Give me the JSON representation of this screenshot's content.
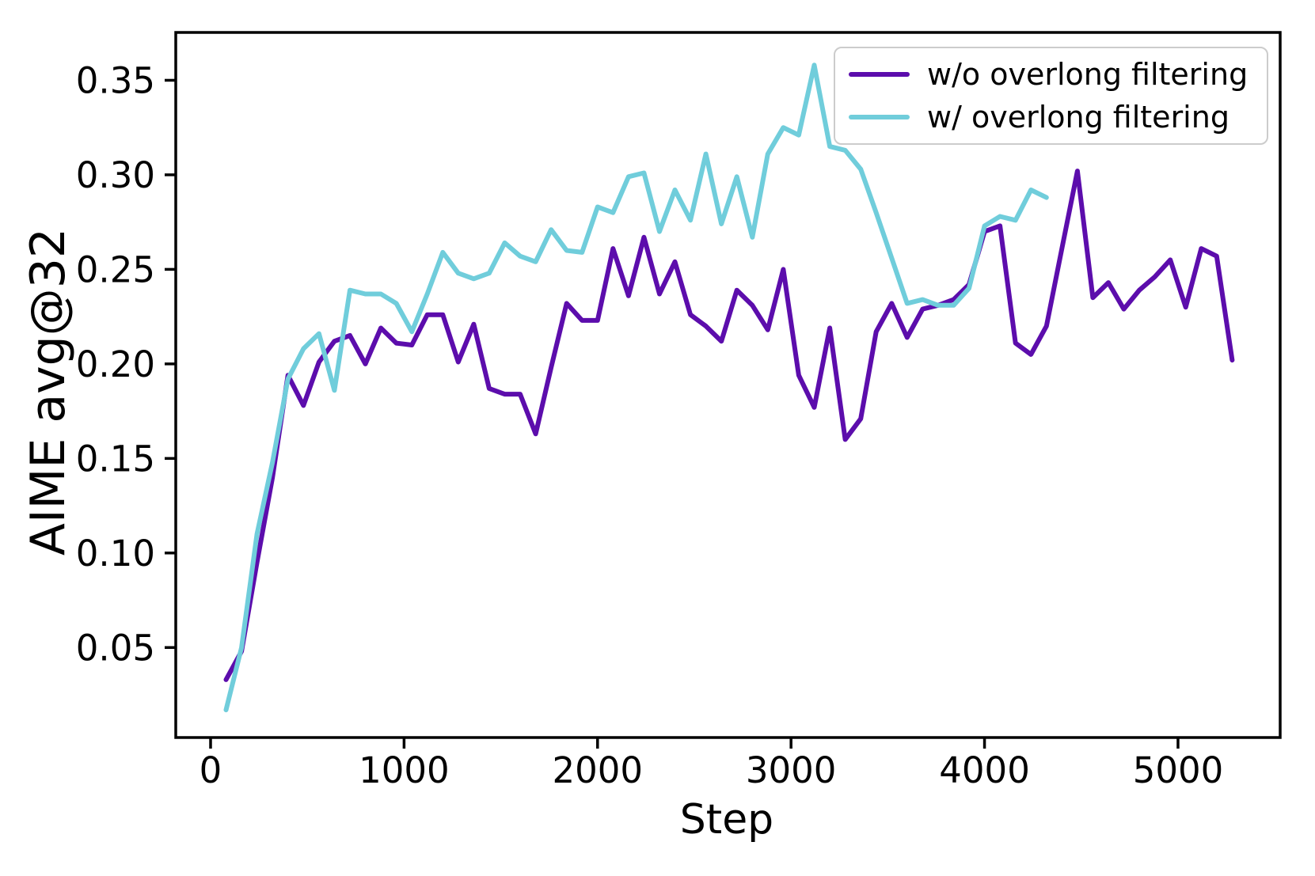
{
  "chart_data": {
    "type": "line",
    "title": "",
    "xlabel": "Step",
    "ylabel": "AIME avg@32",
    "xlim": [
      -180,
      5528
    ],
    "ylim": [
      0.0024,
      0.3753
    ],
    "xticks": [
      0,
      1000,
      2000,
      3000,
      4000,
      5000
    ],
    "yticks": [
      0.05,
      0.1,
      0.15,
      0.2,
      0.25,
      0.3,
      0.35
    ],
    "grid": false,
    "legend_position": "upper right",
    "axis_color": "#000000",
    "background_color": "#ffffff",
    "series": [
      {
        "name": "w/o overlong filtering",
        "color": "#5c0dac",
        "x": [
          80,
          160,
          240,
          320,
          400,
          480,
          560,
          640,
          720,
          800,
          880,
          960,
          1040,
          1120,
          1200,
          1280,
          1360,
          1440,
          1520,
          1600,
          1680,
          1760,
          1840,
          1920,
          2000,
          2080,
          2160,
          2240,
          2320,
          2400,
          2480,
          2560,
          2640,
          2720,
          2800,
          2880,
          2960,
          3040,
          3120,
          3200,
          3280,
          3360,
          3440,
          3520,
          3600,
          3680,
          3760,
          3840,
          3920,
          4000,
          4080,
          4160,
          4240,
          4320,
          4400,
          4480,
          4560,
          4640,
          4720,
          4800,
          4880,
          4960,
          5040,
          5120,
          5200,
          5280
        ],
        "y": [
          0.033,
          0.048,
          0.095,
          0.14,
          0.194,
          0.178,
          0.201,
          0.212,
          0.215,
          0.2,
          0.219,
          0.211,
          0.21,
          0.226,
          0.226,
          0.201,
          0.221,
          0.187,
          0.184,
          0.184,
          0.163,
          0.198,
          0.232,
          0.223,
          0.223,
          0.261,
          0.236,
          0.267,
          0.237,
          0.254,
          0.226,
          0.22,
          0.212,
          0.239,
          0.231,
          0.218,
          0.25,
          0.194,
          0.177,
          0.219,
          0.16,
          0.171,
          0.217,
          0.232,
          0.214,
          0.229,
          0.231,
          0.234,
          0.242,
          0.27,
          0.273,
          0.211,
          0.205,
          0.22,
          0.261,
          0.302,
          0.235,
          0.243,
          0.229,
          0.239,
          0.246,
          0.255,
          0.23,
          0.261,
          0.257,
          0.202
        ]
      },
      {
        "name": "w/ overlong filtering",
        "color": "#70cddb",
        "x": [
          80,
          160,
          240,
          320,
          400,
          480,
          560,
          640,
          720,
          800,
          880,
          960,
          1040,
          1120,
          1200,
          1280,
          1360,
          1440,
          1520,
          1600,
          1680,
          1760,
          1840,
          1920,
          2000,
          2080,
          2160,
          2240,
          2320,
          2400,
          2480,
          2560,
          2640,
          2720,
          2800,
          2880,
          2960,
          3040,
          3120,
          3200,
          3280,
          3360,
          3440,
          3520,
          3600,
          3680,
          3760,
          3840,
          3920,
          4000,
          4080,
          4160,
          4240,
          4320
        ],
        "y": [
          0.017,
          0.05,
          0.11,
          0.148,
          0.192,
          0.208,
          0.216,
          0.186,
          0.239,
          0.237,
          0.237,
          0.232,
          0.217,
          0.237,
          0.259,
          0.248,
          0.245,
          0.248,
          0.264,
          0.257,
          0.254,
          0.271,
          0.26,
          0.259,
          0.283,
          0.28,
          0.299,
          0.301,
          0.27,
          0.292,
          0.276,
          0.311,
          0.274,
          0.299,
          0.267,
          0.311,
          0.325,
          0.321,
          0.358,
          0.315,
          0.313,
          0.303,
          0.28,
          0.256,
          0.232,
          0.234,
          0.231,
          0.231,
          0.24,
          0.273,
          0.278,
          0.276,
          0.292,
          0.288
        ]
      }
    ]
  }
}
